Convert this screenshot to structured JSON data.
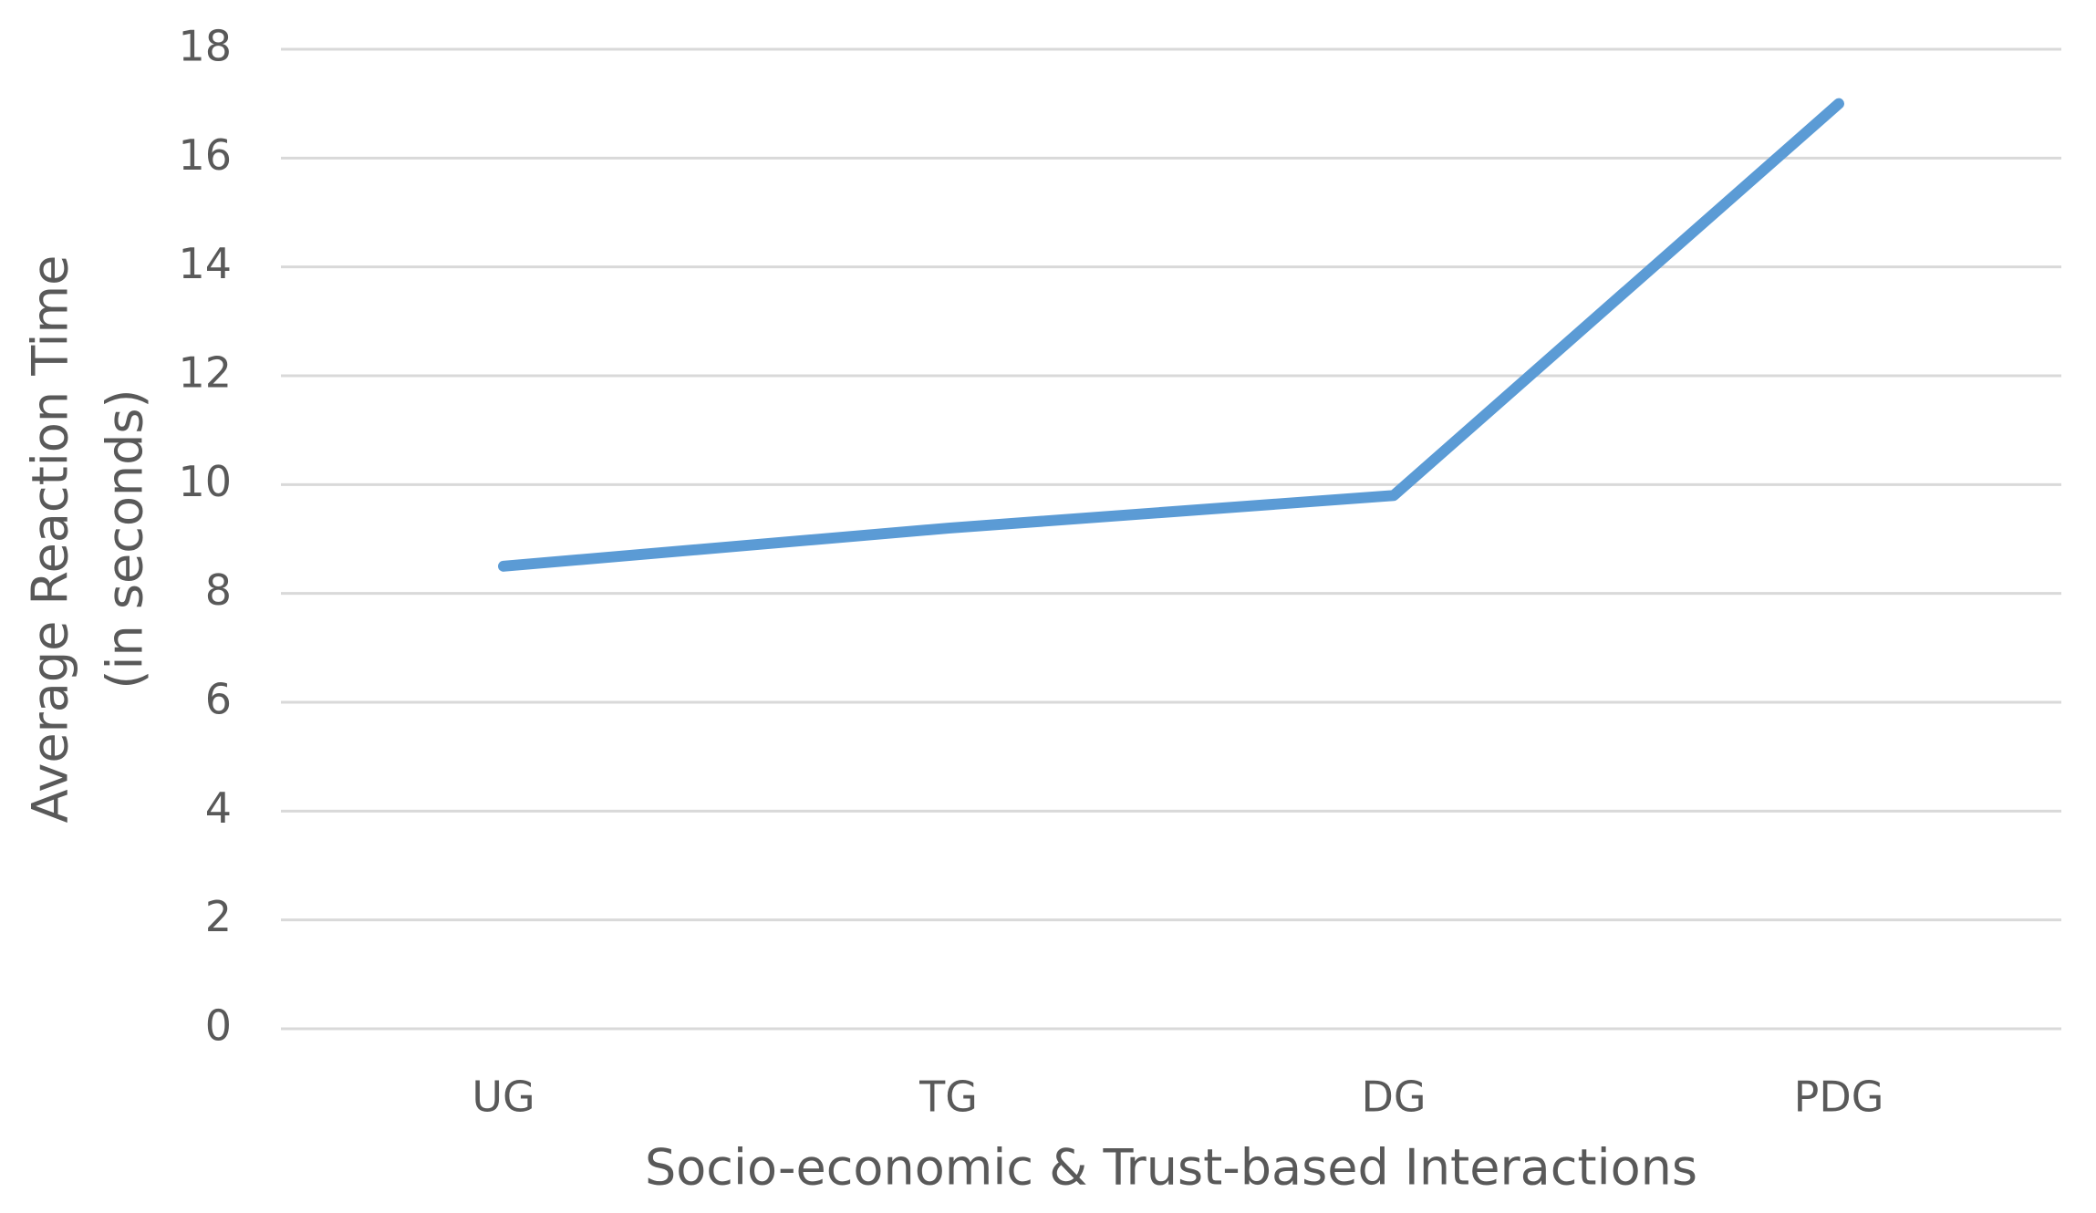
{
  "chart_data": {
    "type": "line",
    "x_label": "Socio-economic & Trust-based Interactions",
    "y_label": [
      "Average Reaction Time",
      "(in seconds)"
    ],
    "categories": [
      "UG",
      "TG",
      "DG",
      "PDG"
    ],
    "values": [
      8.5,
      9.2,
      9.8,
      17.0
    ],
    "color": "#5b9bd5",
    "ylim": [
      0,
      18
    ],
    "yticks": [
      0,
      2,
      4,
      6,
      8,
      10,
      12,
      14,
      16,
      18
    ],
    "grid": true
  }
}
